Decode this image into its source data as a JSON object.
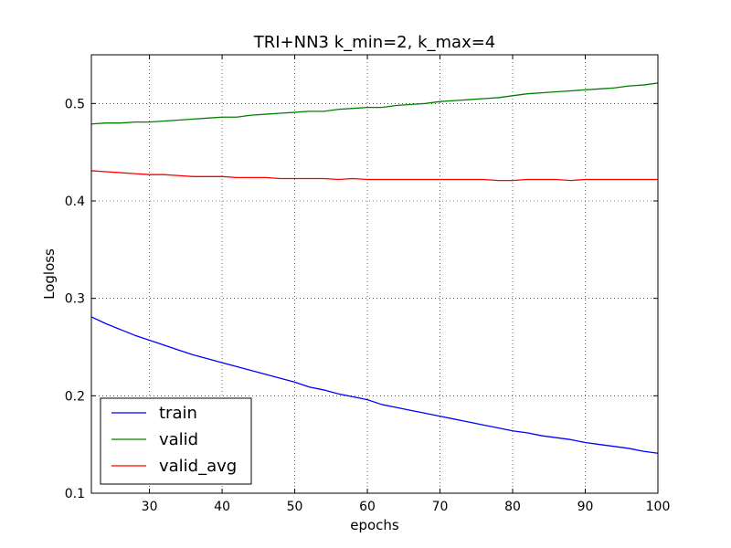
{
  "chart_data": {
    "type": "line",
    "title": "TRI+NN3 k_min=2, k_max=4",
    "xlabel": "epochs",
    "ylabel": "Logloss",
    "xlim": [
      22,
      100
    ],
    "ylim": [
      0.1,
      0.55
    ],
    "xticks": [
      30,
      40,
      50,
      60,
      70,
      80,
      90,
      100
    ],
    "yticks": [
      0.1,
      0.2,
      0.3,
      0.4,
      0.5
    ],
    "ytick_labels": [
      "0.1",
      "0.2",
      "0.3",
      "0.4",
      "0.5"
    ],
    "grid": true,
    "legend_position": "lower-left",
    "x": [
      22,
      24,
      26,
      28,
      30,
      32,
      34,
      36,
      38,
      40,
      42,
      44,
      46,
      48,
      50,
      52,
      54,
      56,
      58,
      60,
      62,
      64,
      66,
      68,
      70,
      72,
      74,
      76,
      78,
      80,
      82,
      84,
      86,
      88,
      90,
      92,
      94,
      96,
      98,
      100
    ],
    "series": [
      {
        "name": "train",
        "color": "#0000ff",
        "values": [
          0.281,
          0.274,
          0.268,
          0.262,
          0.257,
          0.252,
          0.247,
          0.242,
          0.238,
          0.234,
          0.23,
          0.226,
          0.222,
          0.218,
          0.214,
          0.209,
          0.206,
          0.202,
          0.199,
          0.196,
          0.191,
          0.188,
          0.185,
          0.182,
          0.179,
          0.176,
          0.173,
          0.17,
          0.167,
          0.164,
          0.162,
          0.159,
          0.157,
          0.155,
          0.152,
          0.15,
          0.148,
          0.146,
          0.143,
          0.141
        ]
      },
      {
        "name": "valid",
        "color": "#008000",
        "values": [
          0.479,
          0.48,
          0.48,
          0.481,
          0.481,
          0.482,
          0.483,
          0.484,
          0.485,
          0.486,
          0.486,
          0.488,
          0.489,
          0.49,
          0.491,
          0.492,
          0.492,
          0.494,
          0.495,
          0.496,
          0.496,
          0.498,
          0.499,
          0.5,
          0.502,
          0.503,
          0.504,
          0.505,
          0.506,
          0.508,
          0.51,
          0.511,
          0.512,
          0.513,
          0.514,
          0.515,
          0.516,
          0.518,
          0.519,
          0.521
        ]
      },
      {
        "name": "valid_avg",
        "color": "#ff0000",
        "values": [
          0.431,
          0.43,
          0.429,
          0.428,
          0.427,
          0.427,
          0.426,
          0.425,
          0.425,
          0.425,
          0.424,
          0.424,
          0.424,
          0.423,
          0.423,
          0.423,
          0.423,
          0.422,
          0.423,
          0.422,
          0.422,
          0.422,
          0.422,
          0.422,
          0.422,
          0.422,
          0.422,
          0.422,
          0.421,
          0.421,
          0.422,
          0.422,
          0.422,
          0.421,
          0.422,
          0.422,
          0.422,
          0.422,
          0.422,
          0.422
        ]
      }
    ]
  }
}
